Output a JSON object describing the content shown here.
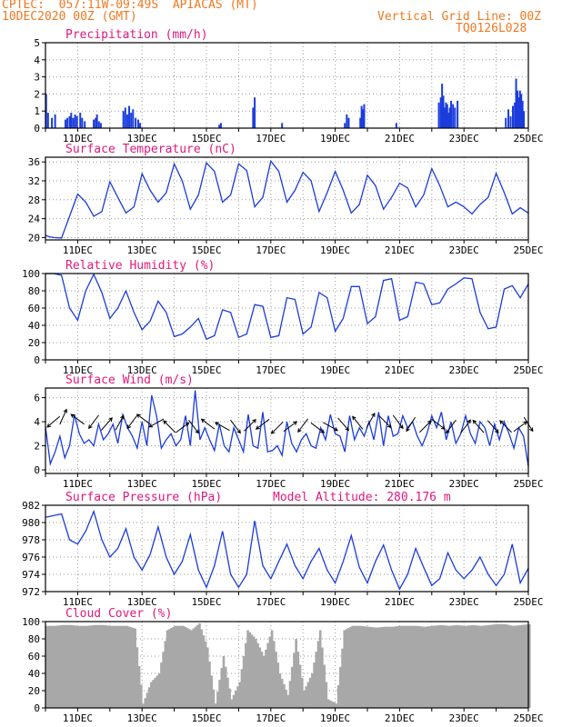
{
  "header": {
    "line1": "CPTEC:  057:11W-09:49S  APIACAS (MT)",
    "line2": "10DEC2020 00Z (GMT)",
    "right1": "Vertical Grid Line: 00Z",
    "right2": "TQ0126L028",
    "orange": "#f07820",
    "magenta": "#e0187c",
    "series_color": "#1a3cdc",
    "bar_color": "#1a3cdc",
    "cloud_color": "#a8a8a8"
  },
  "time_axis": {
    "start_day": 10,
    "end_day": 25,
    "tick_labels": [
      "11DEC",
      "13DEC",
      "15DEC",
      "17DEC",
      "19DEC",
      "21DEC",
      "23DEC",
      "25DEC"
    ],
    "tick_days": [
      11,
      13,
      15,
      17,
      19,
      21,
      23,
      25
    ]
  },
  "chart_data": [
    {
      "id": "precip",
      "type": "bar",
      "title": "Precipitation (mm/h)",
      "ylim": [
        0,
        5
      ],
      "yticks": [
        0,
        1,
        2,
        3,
        4,
        5
      ],
      "x": [
        10.02,
        10.08,
        10.2,
        10.3,
        10.62,
        10.68,
        10.75,
        10.8,
        10.86,
        10.92,
        10.98,
        11.08,
        11.14,
        11.22,
        11.5,
        11.56,
        11.6,
        11.66,
        11.72,
        12.42,
        12.48,
        12.54,
        12.6,
        12.66,
        12.72,
        12.8,
        12.88,
        12.94,
        15.4,
        15.45,
        16.45,
        16.5,
        17.35,
        19.3,
        19.36,
        19.42,
        19.78,
        19.82,
        19.86,
        19.9,
        20.9,
        22.22,
        22.28,
        22.32,
        22.36,
        22.4,
        22.44,
        22.48,
        22.52,
        22.56,
        22.6,
        22.66,
        22.72,
        22.8,
        24.3,
        24.38,
        24.45,
        24.52,
        24.58,
        24.62,
        24.66,
        24.7,
        24.74,
        24.78,
        24.82,
        24.86
      ],
      "values": [
        2.0,
        0.9,
        0.6,
        0.8,
        0.5,
        0.6,
        0.7,
        0.9,
        0.6,
        0.8,
        0.7,
        0.9,
        0.6,
        0.4,
        0.5,
        0.6,
        0.8,
        0.4,
        0.3,
        1.0,
        1.2,
        0.8,
        1.3,
        0.9,
        1.1,
        0.6,
        0.5,
        0.3,
        0.2,
        0.3,
        1.2,
        1.8,
        0.3,
        0.3,
        0.8,
        0.6,
        0.6,
        1.3,
        1.1,
        1.4,
        0.3,
        1.5,
        1.8,
        2.6,
        1.9,
        1.2,
        1.5,
        1.4,
        0.9,
        1.2,
        1.6,
        1.4,
        1.2,
        1.6,
        0.6,
        1.1,
        0.7,
        1.3,
        1.5,
        2.9,
        2.2,
        1.8,
        2.2,
        2.0,
        1.6,
        1.0
      ]
    },
    {
      "id": "temp",
      "type": "line",
      "title": "Surface Temperature (nC)",
      "ylim": [
        19.5,
        37
      ],
      "yticks": [
        20,
        24,
        28,
        32,
        36
      ],
      "x": [
        10.0,
        10.1,
        10.25,
        10.5,
        10.75,
        11.0,
        11.25,
        11.5,
        11.75,
        12.0,
        12.25,
        12.5,
        12.75,
        13.0,
        13.25,
        13.5,
        13.75,
        14.0,
        14.25,
        14.5,
        14.75,
        15.0,
        15.25,
        15.5,
        15.75,
        16.0,
        16.25,
        16.5,
        16.75,
        17.0,
        17.25,
        17.5,
        17.75,
        18.0,
        18.25,
        18.5,
        18.75,
        19.0,
        19.25,
        19.5,
        19.75,
        20.0,
        20.25,
        20.5,
        20.75,
        21.0,
        21.25,
        21.5,
        21.75,
        22.0,
        22.25,
        22.5,
        22.75,
        23.0,
        23.25,
        23.5,
        23.75,
        24.0,
        24.25,
        24.5,
        24.75,
        25.0
      ],
      "values": [
        20.5,
        20.2,
        20.0,
        19.9,
        24.5,
        29.2,
        27.5,
        24.5,
        25.5,
        31.8,
        28.5,
        25.2,
        26.5,
        33.5,
        30.0,
        27.5,
        29.5,
        35.6,
        32.0,
        26.0,
        29.0,
        35.8,
        34.0,
        27.5,
        29.0,
        35.6,
        34.2,
        26.5,
        28.5,
        36.2,
        34.0,
        27.5,
        30.0,
        33.8,
        32.0,
        25.5,
        29.5,
        34.0,
        30.0,
        25.2,
        27.0,
        33.2,
        31.0,
        26.0,
        28.5,
        31.5,
        30.5,
        26.5,
        29.0,
        34.6,
        31.0,
        26.5,
        27.5,
        26.5,
        25.0,
        27.0,
        28.5,
        33.6,
        29.5,
        25.0,
        26.3,
        25.2
      ]
    },
    {
      "id": "rh",
      "type": "line",
      "title": "Relative Humidity (%)",
      "ylim": [
        0,
        100
      ],
      "yticks": [
        0,
        20,
        40,
        60,
        80,
        100
      ],
      "x": [
        10.0,
        10.25,
        10.5,
        10.75,
        11.0,
        11.25,
        11.5,
        11.75,
        12.0,
        12.25,
        12.5,
        12.75,
        13.0,
        13.25,
        13.5,
        13.75,
        14.0,
        14.25,
        14.5,
        14.75,
        15.0,
        15.25,
        15.5,
        15.75,
        16.0,
        16.25,
        16.5,
        16.75,
        17.0,
        17.25,
        17.5,
        17.75,
        18.0,
        18.25,
        18.5,
        18.75,
        19.0,
        19.25,
        19.5,
        19.75,
        20.0,
        20.25,
        20.5,
        20.75,
        21.0,
        21.25,
        21.5,
        21.75,
        22.0,
        22.25,
        22.5,
        22.75,
        23.0,
        23.25,
        23.5,
        23.75,
        24.0,
        24.25,
        24.5,
        24.75,
        25.0
      ],
      "values": [
        100,
        100,
        98,
        60,
        46,
        80,
        99,
        78,
        48,
        60,
        80,
        55,
        35,
        45,
        68,
        55,
        27,
        30,
        38,
        48,
        24,
        28,
        58,
        55,
        26,
        30,
        64,
        62,
        26,
        28,
        72,
        70,
        30,
        38,
        78,
        72,
        33,
        48,
        85,
        85,
        42,
        50,
        92,
        94,
        46,
        50,
        90,
        88,
        64,
        66,
        82,
        88,
        95,
        94,
        55,
        36,
        38,
        82,
        86,
        72,
        88
      ]
    },
    {
      "id": "wind",
      "type": "line",
      "title": "Surface Wind (m/s)",
      "ylim": [
        -0.3,
        6.8
      ],
      "yticks": [
        0,
        2,
        4,
        6
      ],
      "x": [
        10.0,
        10.15,
        10.3,
        10.45,
        10.6,
        10.75,
        10.9,
        11.05,
        11.2,
        11.35,
        11.5,
        11.65,
        11.8,
        11.95,
        12.1,
        12.25,
        12.4,
        12.55,
        12.7,
        12.85,
        13.0,
        13.15,
        13.3,
        13.45,
        13.6,
        13.75,
        13.9,
        14.05,
        14.2,
        14.35,
        14.5,
        14.65,
        14.8,
        14.95,
        15.1,
        15.25,
        15.4,
        15.55,
        15.7,
        15.85,
        16.0,
        16.15,
        16.3,
        16.45,
        16.6,
        16.75,
        16.9,
        17.05,
        17.2,
        17.35,
        17.5,
        17.65,
        17.8,
        17.95,
        18.1,
        18.25,
        18.4,
        18.55,
        18.7,
        18.85,
        19.0,
        19.15,
        19.3,
        19.45,
        19.6,
        19.75,
        19.9,
        20.05,
        20.2,
        20.35,
        20.5,
        20.65,
        20.8,
        20.95,
        21.1,
        21.25,
        21.4,
        21.55,
        21.7,
        21.85,
        22.0,
        22.15,
        22.3,
        22.45,
        22.6,
        22.75,
        22.9,
        23.05,
        23.2,
        23.35,
        23.5,
        23.65,
        23.8,
        23.95,
        24.1,
        24.25,
        24.4,
        24.55,
        24.7,
        24.85,
        25.0
      ],
      "values": [
        3.6,
        0.5,
        1.5,
        2.8,
        1.0,
        2.0,
        4.6,
        3.0,
        2.2,
        2.5,
        2.0,
        3.8,
        2.5,
        3.0,
        3.8,
        2.2,
        4.6,
        3.5,
        2.8,
        1.8,
        4.0,
        2.0,
        6.2,
        4.5,
        1.8,
        2.5,
        3.0,
        2.0,
        2.5,
        4.5,
        2.0,
        6.6,
        2.5,
        3.5,
        2.5,
        1.6,
        3.8,
        2.0,
        1.5,
        3.5,
        2.5,
        1.5,
        4.6,
        2.0,
        1.8,
        4.8,
        1.5,
        1.6,
        2.0,
        1.2,
        4.0,
        2.2,
        1.5,
        2.5,
        3.0,
        2.0,
        1.8,
        3.5,
        2.5,
        4.6,
        3.0,
        2.8,
        1.5,
        4.5,
        2.5,
        3.5,
        2.8,
        4.0,
        2.5,
        4.8,
        2.0,
        4.5,
        2.8,
        3.0,
        4.5,
        3.5,
        4.0,
        2.8,
        2.0,
        3.0,
        4.5,
        3.5,
        4.8,
        2.5,
        4.0,
        2.2,
        3.0,
        4.5,
        3.0,
        2.2,
        4.0,
        3.5,
        2.0,
        3.8,
        2.5,
        4.0,
        3.0,
        1.8,
        3.5,
        2.8,
        0.3
      ],
      "arrow_x": [
        10.25,
        10.55,
        11.0,
        11.5,
        11.9,
        12.3,
        12.7,
        13.05,
        13.45,
        13.85,
        14.25,
        14.6,
        15.05,
        15.5,
        15.9,
        16.35,
        16.75,
        17.2,
        17.6,
        18.0,
        18.45,
        18.85,
        19.25,
        19.7,
        20.1,
        20.55,
        20.95,
        21.35,
        21.8,
        22.2,
        22.6,
        23.05,
        23.45,
        23.9,
        24.3,
        24.75,
        25.0
      ],
      "arrow_y": [
        4.0,
        4.4,
        4.2,
        4.0,
        3.8,
        3.9,
        4.0,
        4.2,
        3.9,
        3.6,
        3.5,
        3.6,
        3.8,
        3.6,
        3.6,
        3.7,
        3.8,
        3.5,
        3.6,
        3.7,
        3.5,
        3.6,
        3.8,
        3.9,
        4.1,
        4.0,
        4.0,
        3.8,
        3.6,
        3.8,
        3.6,
        3.6,
        3.6,
        3.6,
        3.6,
        3.6,
        3.8
      ],
      "arrow_u": [
        -0.7,
        0.4,
        -0.8,
        -0.6,
        0.7,
        0.5,
        -0.6,
        -0.8,
        -0.9,
        -0.7,
        0.8,
        0.6,
        -0.8,
        -0.9,
        0.6,
        0.7,
        -0.8,
        -0.7,
        0.8,
        -0.6,
        0.8,
        0.9,
        0.7,
        -0.8,
        0.5,
        0.7,
        0.6,
        -0.5,
        0.7,
        0.8,
        -0.6,
        0.6,
        -0.7,
        0.7,
        -0.7,
        0.8,
        0.5
      ],
      "arrow_v": [
        -0.6,
        0.9,
        0.6,
        -0.8,
        0.8,
        0.9,
        -0.8,
        0.6,
        -0.5,
        0.7,
        0.6,
        -0.8,
        0.6,
        0.5,
        -0.8,
        0.7,
        -0.6,
        -0.7,
        0.6,
        -0.8,
        -0.6,
        -0.5,
        -0.8,
        1.0,
        0.9,
        -0.7,
        -0.8,
        -0.8,
        0.7,
        -0.6,
        -0.8,
        0.8,
        0.8,
        -0.8,
        0.7,
        0.6,
        -0.8
      ]
    },
    {
      "id": "pres",
      "type": "line",
      "title": "Surface Pressure (hPa)",
      "subtitle": "Model Altitude: 280.176 m",
      "ylim": [
        972,
        982
      ],
      "yticks": [
        972,
        974,
        976,
        978,
        980,
        982
      ],
      "x": [
        10.0,
        10.25,
        10.5,
        10.75,
        11.0,
        11.25,
        11.5,
        11.75,
        12.0,
        12.25,
        12.5,
        12.75,
        13.0,
        13.25,
        13.5,
        13.75,
        14.0,
        14.25,
        14.5,
        14.75,
        15.0,
        15.25,
        15.5,
        15.75,
        16.0,
        16.25,
        16.5,
        16.75,
        17.0,
        17.25,
        17.5,
        17.75,
        18.0,
        18.25,
        18.5,
        18.75,
        19.0,
        19.25,
        19.5,
        19.75,
        20.0,
        20.25,
        20.5,
        20.75,
        21.0,
        21.25,
        21.5,
        21.75,
        22.0,
        22.25,
        22.5,
        22.75,
        23.0,
        23.25,
        23.5,
        23.75,
        24.0,
        24.25,
        24.5,
        24.75,
        25.0
      ],
      "values": [
        980.6,
        980.8,
        981.0,
        978.0,
        977.5,
        979.0,
        981.3,
        978.0,
        976.0,
        977.0,
        979.3,
        976.0,
        974.5,
        976.3,
        979.5,
        976.0,
        974.0,
        975.5,
        978.6,
        974.5,
        972.5,
        975.0,
        979.0,
        974.0,
        972.5,
        974.0,
        980.2,
        975.0,
        973.5,
        975.5,
        977.5,
        975.0,
        973.5,
        975.5,
        977.0,
        974.5,
        973.0,
        975.5,
        978.5,
        974.8,
        973.0,
        975.5,
        977.4,
        974.5,
        972.3,
        974.0,
        977.0,
        974.8,
        972.7,
        973.5,
        976.5,
        974.5,
        973.5,
        974.5,
        976.0,
        974.0,
        972.7,
        974.0,
        977.5,
        973.0,
        974.7
      ]
    },
    {
      "id": "cloud",
      "type": "area",
      "title": "Cloud Cover (%)",
      "ylim": [
        0,
        100
      ],
      "yticks": [
        0,
        20,
        40,
        60,
        80,
        100
      ],
      "x": [
        10.0,
        10.25,
        10.5,
        10.75,
        11.0,
        11.25,
        11.5,
        11.75,
        12.0,
        12.25,
        12.5,
        12.75,
        13.0,
        13.25,
        13.5,
        13.75,
        14.0,
        14.25,
        14.5,
        14.75,
        15.0,
        15.25,
        15.5,
        15.75,
        16.0,
        16.25,
        16.5,
        16.75,
        17.0,
        17.25,
        17.5,
        17.75,
        18.0,
        18.25,
        18.5,
        18.75,
        19.0,
        19.25,
        19.5,
        19.75,
        20.0,
        20.25,
        20.5,
        20.75,
        21.0,
        21.25,
        21.5,
        21.75,
        22.0,
        22.25,
        22.5,
        22.75,
        23.0,
        23.25,
        23.5,
        23.75,
        24.0,
        24.25,
        24.5,
        24.75,
        25.0
      ],
      "values": [
        95,
        95,
        96,
        96,
        95,
        95,
        96,
        96,
        95,
        95,
        95,
        92,
        5,
        30,
        40,
        90,
        95,
        95,
        90,
        98,
        70,
        5,
        60,
        10,
        30,
        90,
        80,
        60,
        90,
        40,
        15,
        80,
        20,
        40,
        90,
        10,
        5,
        90,
        95,
        95,
        94,
        93,
        94,
        94,
        95,
        95,
        95,
        94,
        95,
        96,
        95,
        96,
        95,
        96,
        95,
        96,
        97,
        97,
        95,
        96,
        97
      ]
    }
  ]
}
